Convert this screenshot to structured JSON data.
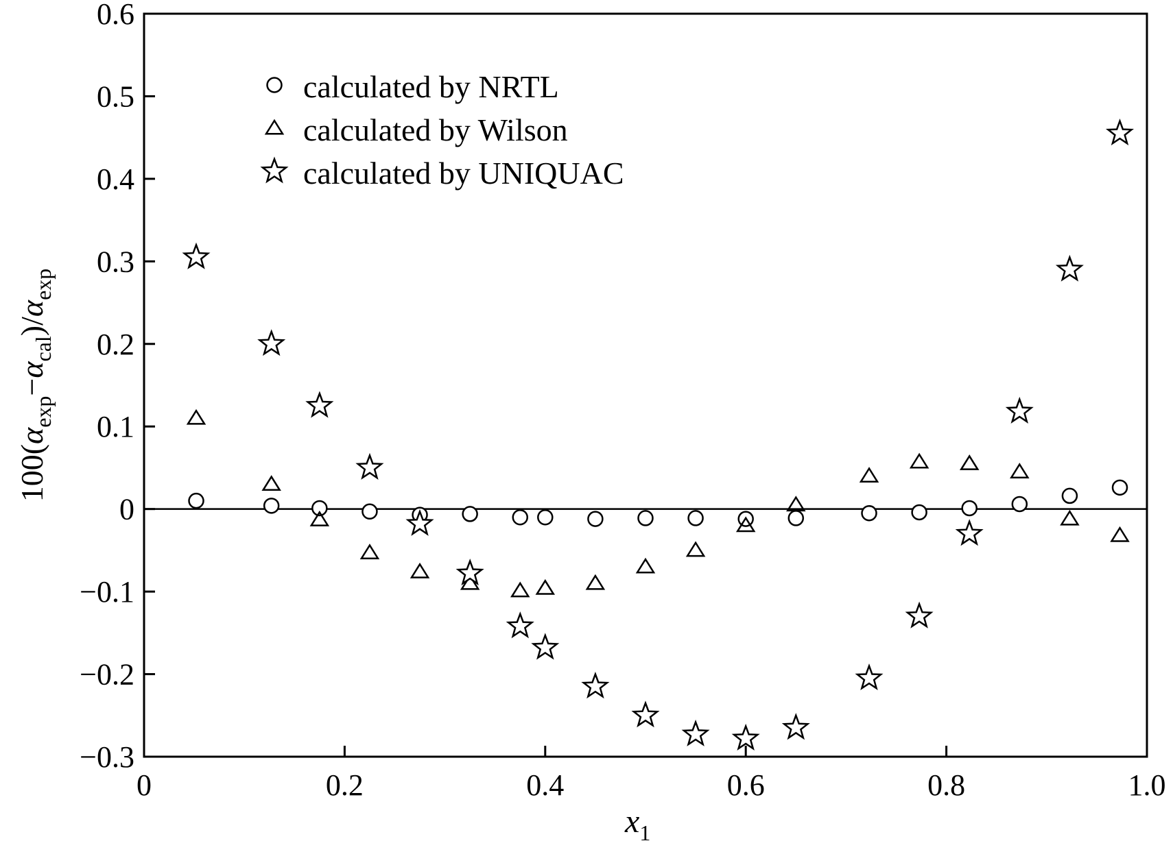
{
  "chart_data": {
    "type": "scatter",
    "xlabel": {
      "base": "x",
      "sub": "1"
    },
    "ylabel": {
      "parts": [
        {
          "t": "100(",
          "s": false
        },
        {
          "t": "α",
          "s": false,
          "italic": true
        },
        {
          "t": "exp",
          "s": true
        },
        {
          "t": "−",
          "s": false
        },
        {
          "t": "α",
          "s": false,
          "italic": true
        },
        {
          "t": "cal",
          "s": true
        },
        {
          "t": ")/",
          "s": false
        },
        {
          "t": "α",
          "s": false,
          "italic": true
        },
        {
          "t": "exp",
          "s": true
        }
      ]
    },
    "xlim": [
      0,
      1.0
    ],
    "ylim": [
      -0.3,
      0.6
    ],
    "xticks": [
      0,
      0.2,
      0.4,
      0.6,
      0.8,
      1.0
    ],
    "xtick_labels": [
      "0",
      "0.2",
      "0.4",
      "0.6",
      "0.8",
      "1.0"
    ],
    "yticks": [
      -0.3,
      -0.2,
      -0.1,
      0,
      0.1,
      0.2,
      0.3,
      0.4,
      0.5,
      0.6
    ],
    "ytick_labels": [
      "−0.3",
      "−0.2",
      "−0.1",
      "0",
      "0.1",
      "0.2",
      "0.3",
      "0.4",
      "0.5",
      "0.6"
    ],
    "zero_line": true,
    "grid": false,
    "legend_position": "top-left",
    "series": [
      {
        "name": "calculated by NRTL",
        "marker": "circle",
        "x": [
          0.052,
          0.127,
          0.175,
          0.225,
          0.275,
          0.325,
          0.375,
          0.4,
          0.45,
          0.5,
          0.55,
          0.6,
          0.65,
          0.723,
          0.773,
          0.823,
          0.873,
          0.923,
          0.973
        ],
        "y": [
          0.01,
          0.004,
          0.001,
          -0.003,
          -0.007,
          -0.006,
          -0.01,
          -0.01,
          -0.012,
          -0.011,
          -0.011,
          -0.012,
          -0.011,
          -0.005,
          -0.004,
          0.001,
          0.006,
          0.016,
          0.026
        ]
      },
      {
        "name": "calculated by Wilson",
        "marker": "triangle",
        "x": [
          0.052,
          0.127,
          0.175,
          0.225,
          0.275,
          0.325,
          0.375,
          0.4,
          0.45,
          0.5,
          0.55,
          0.6,
          0.65,
          0.723,
          0.773,
          0.823,
          0.873,
          0.923,
          0.973
        ],
        "y": [
          0.11,
          0.03,
          -0.013,
          -0.053,
          -0.076,
          -0.09,
          -0.099,
          -0.096,
          -0.09,
          -0.07,
          -0.05,
          -0.02,
          0.005,
          0.04,
          0.057,
          0.055,
          0.045,
          -0.012,
          -0.032
        ]
      },
      {
        "name": "calculated by UNIQUAC",
        "marker": "star",
        "x": [
          0.052,
          0.127,
          0.175,
          0.225,
          0.275,
          0.325,
          0.375,
          0.4,
          0.45,
          0.5,
          0.55,
          0.6,
          0.65,
          0.723,
          0.773,
          0.823,
          0.873,
          0.923,
          0.973
        ],
        "y": [
          0.305,
          0.2,
          0.125,
          0.05,
          -0.018,
          -0.078,
          -0.142,
          -0.168,
          -0.215,
          -0.25,
          -0.273,
          -0.278,
          -0.265,
          -0.205,
          -0.13,
          -0.03,
          0.118,
          0.29,
          0.455
        ]
      }
    ]
  }
}
